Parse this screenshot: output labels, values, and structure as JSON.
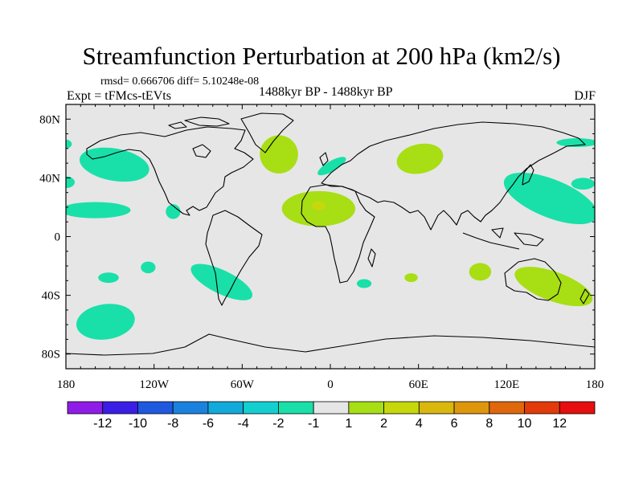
{
  "header": {
    "title": "Streamfunction Perturbation at 200 hPa (km2/s)",
    "rmsd_line": "rmsd= 0.666706 diff= 5.10248e-08",
    "left_subtitle": "Expt = tFMcs-tEVts",
    "center_subtitle": "1488kyr BP - 1488kyr BP",
    "right_subtitle": "DJF"
  },
  "chart_data": {
    "type": "contour-map",
    "title": "Streamfunction Perturbation at 200 hPa (km2/s)",
    "projection": "cylindrical equidistant",
    "x_range": [
      -180,
      180
    ],
    "y_range": [
      -90,
      90
    ],
    "x_ticks": [
      {
        "value": -180,
        "label": "180"
      },
      {
        "value": -120,
        "label": "120W"
      },
      {
        "value": -60,
        "label": "60W"
      },
      {
        "value": 0,
        "label": "0"
      },
      {
        "value": 60,
        "label": "60E"
      },
      {
        "value": 120,
        "label": "120E"
      },
      {
        "value": 180,
        "label": "180"
      }
    ],
    "y_ticks": [
      {
        "value": 80,
        "label": "80N"
      },
      {
        "value": 40,
        "label": "40N"
      },
      {
        "value": 0,
        "label": "0"
      },
      {
        "value": -40,
        "label": "40S"
      },
      {
        "value": -80,
        "label": "80S"
      }
    ],
    "background_color": "#e6e6e6",
    "colorbar": {
      "levels": [
        -12,
        -10,
        -8,
        -6,
        -4,
        -2,
        -1,
        1,
        2,
        4,
        6,
        8,
        10,
        12
      ],
      "labels": [
        "-12",
        "-10",
        "-8",
        "-6",
        "-4",
        "-2",
        "-1",
        "1",
        "2",
        "4",
        "6",
        "8",
        "10",
        "12"
      ],
      "colors": [
        "#8f1ce6",
        "#3b1ee6",
        "#1f59e0",
        "#1a82de",
        "#12aadb",
        "#14cfd0",
        "#19e0a8",
        "#e6e6e6",
        "#a8de14",
        "#c6d80c",
        "#d9b70f",
        "#de970d",
        "#e0670c",
        "#e23a0a",
        "#e60e0e"
      ]
    },
    "anomalies": [
      {
        "name": "north-pacific-west-negative",
        "lon": -147,
        "lat": 49,
        "dlon": 24,
        "dlat": 11,
        "rot": 10,
        "bin": "-2 to -1",
        "color": "#19e0a8"
      },
      {
        "name": "north-pacific-east-negative",
        "lon": -160,
        "lat": 18,
        "dlon": 24,
        "dlat": 5.5,
        "rot": 0,
        "bin": "-2 to -1",
        "color": "#19e0a8"
      },
      {
        "name": "pacific-dateline-negative",
        "lon": -180,
        "lat": 63,
        "dlon": 4,
        "dlat": 3,
        "rot": 0,
        "bin": "-2 to -1",
        "color": "#19e0a8"
      },
      {
        "name": "east-pacific-negative",
        "lon": -107,
        "lat": 17,
        "dlon": 5,
        "dlat": 5,
        "rot": 0,
        "bin": "-2 to -1",
        "color": "#19e0a8"
      },
      {
        "name": "east-pacific-small-negative",
        "lon": -180,
        "lat": 37,
        "dlon": 6,
        "dlat": 4,
        "rot": 0,
        "bin": "-2 to -1",
        "color": "#19e0a8"
      },
      {
        "name": "south-pacific-negative-1",
        "lon": -124,
        "lat": -21,
        "dlon": 5,
        "dlat": 4,
        "rot": 0,
        "bin": "-2 to -1",
        "color": "#19e0a8"
      },
      {
        "name": "south-pacific-negative-2",
        "lon": -151,
        "lat": -28,
        "dlon": 7,
        "dlat": 3.5,
        "rot": 0,
        "bin": "-2 to -1",
        "color": "#19e0a8"
      },
      {
        "name": "south-pacific-negative-3",
        "lon": -153,
        "lat": -58,
        "dlon": 20,
        "dlat": 12,
        "rot": -8,
        "bin": "-2 to -1",
        "color": "#19e0a8"
      },
      {
        "name": "south-america-negative",
        "lon": -74,
        "lat": -31,
        "dlon": 23,
        "dlat": 8,
        "rot": 26,
        "bin": "-2 to -1",
        "color": "#19e0a8"
      },
      {
        "name": "north-atlantic-negative",
        "lon": 1,
        "lat": 48,
        "dlon": 11,
        "dlat": 3.5,
        "rot": -30,
        "bin": "-2 to -1",
        "color": "#19e0a8"
      },
      {
        "name": "south-africa-negative",
        "lon": 23,
        "lat": -32,
        "dlon": 5,
        "dlat": 3,
        "rot": 0,
        "bin": "-2 to -1",
        "color": "#19e0a8"
      },
      {
        "name": "west-pacific-negative",
        "lon": 150,
        "lat": 26,
        "dlon": 34,
        "dlat": 13,
        "rot": 22,
        "bin": "-2 to -1",
        "color": "#19e0a8"
      },
      {
        "name": "north-pacific-east-edge-negative",
        "lon": 168,
        "lat": 64,
        "dlon": 14,
        "dlat": 3,
        "rot": 0,
        "bin": "-2 to -1",
        "color": "#19e0a8"
      },
      {
        "name": "pacific-edge-negative",
        "lon": 172,
        "lat": 36,
        "dlon": 8,
        "dlat": 4,
        "rot": 0,
        "bin": "-2 to -1",
        "color": "#19e0a8"
      },
      {
        "name": "north-atlantic-positive",
        "lon": -35,
        "lat": 56,
        "dlon": 13,
        "dlat": 13,
        "rot": 0,
        "bin": "1 to 2",
        "color": "#a8de14"
      },
      {
        "name": "africa-positive",
        "lon": -8,
        "lat": 19,
        "dlon": 25,
        "dlat": 12,
        "rot": 0,
        "bin": "1 to 2",
        "color": "#a8de14"
      },
      {
        "name": "africa-positive-core",
        "lon": -8,
        "lat": 21,
        "dlon": 4.5,
        "dlat": 3,
        "rot": 0,
        "bin": "2 to 4",
        "color": "#c6d80c"
      },
      {
        "name": "asia-positive",
        "lon": 61,
        "lat": 53,
        "dlon": 16,
        "dlat": 10,
        "rot": -12,
        "bin": "1 to 2",
        "color": "#a8de14"
      },
      {
        "name": "africa-south-positive",
        "lon": 55,
        "lat": -28,
        "dlon": 4.5,
        "dlat": 3,
        "rot": 0,
        "bin": "1 to 2",
        "color": "#a8de14"
      },
      {
        "name": "indian-ocean-positive",
        "lon": 102,
        "lat": -24,
        "dlon": 7.5,
        "dlat": 6,
        "rot": 0,
        "bin": "1 to 2",
        "color": "#a8de14"
      },
      {
        "name": "australia-positive",
        "lon": 152,
        "lat": -34,
        "dlon": 28,
        "dlat": 10,
        "rot": 20,
        "bin": "1 to 2",
        "color": "#a8de14"
      }
    ]
  }
}
